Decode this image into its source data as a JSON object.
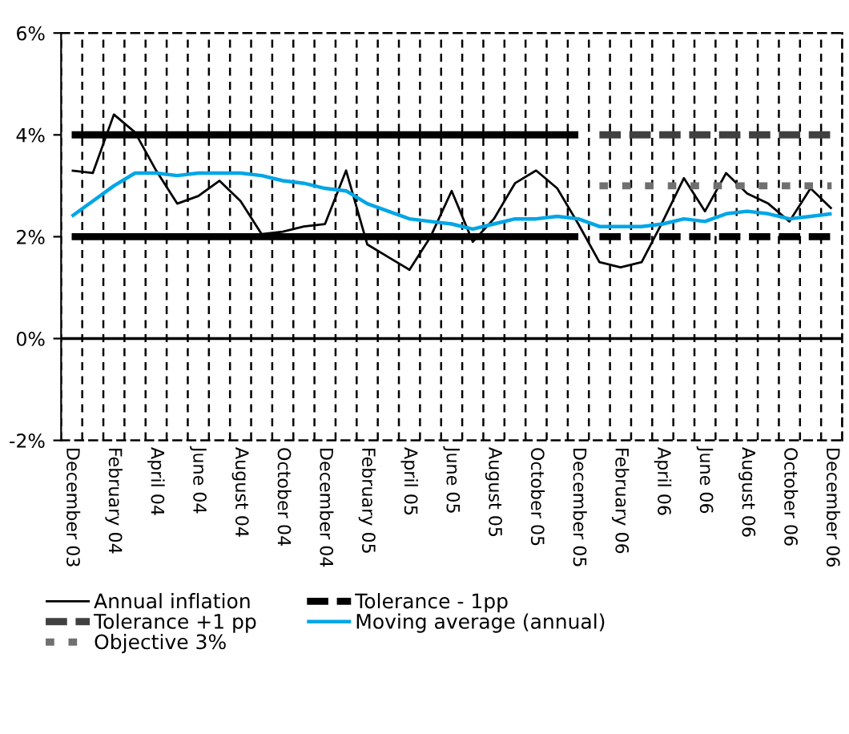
{
  "chart_data": {
    "type": "line",
    "categories": [
      "December 03",
      null,
      "February 04",
      null,
      "April 04",
      null,
      "June 04",
      null,
      "August 04",
      null,
      "October 04",
      null,
      "December 04",
      null,
      "February 05",
      null,
      "April 05",
      null,
      "June 05",
      null,
      "August 05",
      null,
      "October 05",
      null,
      "December 05",
      null,
      "February 06",
      null,
      "April 06",
      null,
      "June 06",
      null,
      "August 06",
      null,
      "October 06",
      null,
      "December 06"
    ],
    "series": [
      {
        "name": "Annual inflation",
        "color": "#000000",
        "line_style": "solid",
        "values": [
          3.3,
          3.25,
          4.4,
          4.05,
          3.3,
          2.65,
          2.8,
          3.1,
          2.7,
          2.05,
          2.1,
          2.2,
          2.25,
          3.3,
          1.85,
          1.6,
          1.35,
          2.0,
          2.9,
          1.9,
          2.35,
          3.05,
          3.3,
          2.95,
          2.25,
          1.5,
          1.4,
          1.5,
          2.3,
          3.15,
          2.5,
          3.25,
          2.85,
          2.65,
          2.3,
          2.95,
          2.55
        ]
      },
      {
        "name": "Tolerance +1 pp",
        "color": "#404040",
        "line_style": "dashed",
        "values": [
          null,
          null,
          null,
          null,
          null,
          null,
          null,
          null,
          null,
          null,
          null,
          null,
          null,
          null,
          null,
          null,
          null,
          null,
          null,
          null,
          null,
          null,
          null,
          null,
          null,
          4,
          4,
          4,
          4,
          4,
          4,
          4,
          4,
          4,
          4,
          4,
          4
        ]
      },
      {
        "name": "Objective 3%",
        "color": "#707070",
        "line_style": "dotted",
        "values": [
          null,
          null,
          null,
          null,
          null,
          null,
          null,
          null,
          null,
          null,
          null,
          null,
          null,
          null,
          null,
          null,
          null,
          null,
          null,
          null,
          null,
          null,
          null,
          null,
          null,
          3,
          3,
          3,
          3,
          3,
          3,
          3,
          3,
          3,
          3,
          3,
          3
        ]
      },
      {
        "name": "Tolerance - 1pp",
        "color": "#000000",
        "line_style": "dashed",
        "values": [
          null,
          null,
          null,
          null,
          null,
          null,
          null,
          null,
          null,
          null,
          null,
          null,
          null,
          null,
          null,
          null,
          null,
          null,
          null,
          null,
          null,
          null,
          null,
          null,
          null,
          2,
          2,
          2,
          2,
          2,
          2,
          2,
          2,
          2,
          2,
          2,
          2
        ]
      },
      {
        "name": "Moving average (annual)",
        "color": "#00a6e6",
        "line_style": "solid",
        "values": [
          2.4,
          2.7,
          3.0,
          3.25,
          3.25,
          3.2,
          3.25,
          3.25,
          3.25,
          3.2,
          3.1,
          3.05,
          2.95,
          2.9,
          2.65,
          2.5,
          2.35,
          2.3,
          2.25,
          2.15,
          2.25,
          2.35,
          2.35,
          2.4,
          2.35,
          2.2,
          2.2,
          2.2,
          2.25,
          2.35,
          2.3,
          2.45,
          2.5,
          2.45,
          2.35,
          2.4,
          2.45
        ]
      },
      {
        "color": "#000000",
        "line_style": "solid",
        "values": [
          4,
          4,
          4,
          4,
          4,
          4,
          4,
          4,
          4,
          4,
          4,
          4,
          4,
          4,
          4,
          4,
          4,
          4,
          4,
          4,
          4,
          4,
          4,
          4,
          4,
          null,
          null,
          null,
          null,
          null,
          null,
          null,
          null,
          null,
          null,
          null,
          null
        ]
      },
      {
        "color": "#000000",
        "line_style": "solid",
        "values": [
          2,
          2,
          2,
          2,
          2,
          2,
          2,
          2,
          2,
          2,
          2,
          2,
          2,
          2,
          2,
          2,
          2,
          2,
          2,
          2,
          2,
          2,
          2,
          2,
          2,
          null,
          null,
          null,
          null,
          null,
          null,
          null,
          null,
          null,
          null,
          null,
          null
        ]
      }
    ],
    "ylim": [
      -2,
      6
    ],
    "yticks": [
      {
        "value": -2,
        "label": "-2%"
      },
      {
        "value": 0,
        "label": "0%"
      },
      {
        "value": 2,
        "label": "2%"
      },
      {
        "value": 4,
        "label": "4%"
      },
      {
        "value": 6,
        "label": "6%"
      }
    ],
    "ref_lines": [
      {
        "axis": "y",
        "value": 0,
        "label": null,
        "color": "#000000"
      }
    ],
    "grid": "x",
    "legend": "bottom",
    "marker": "none"
  }
}
